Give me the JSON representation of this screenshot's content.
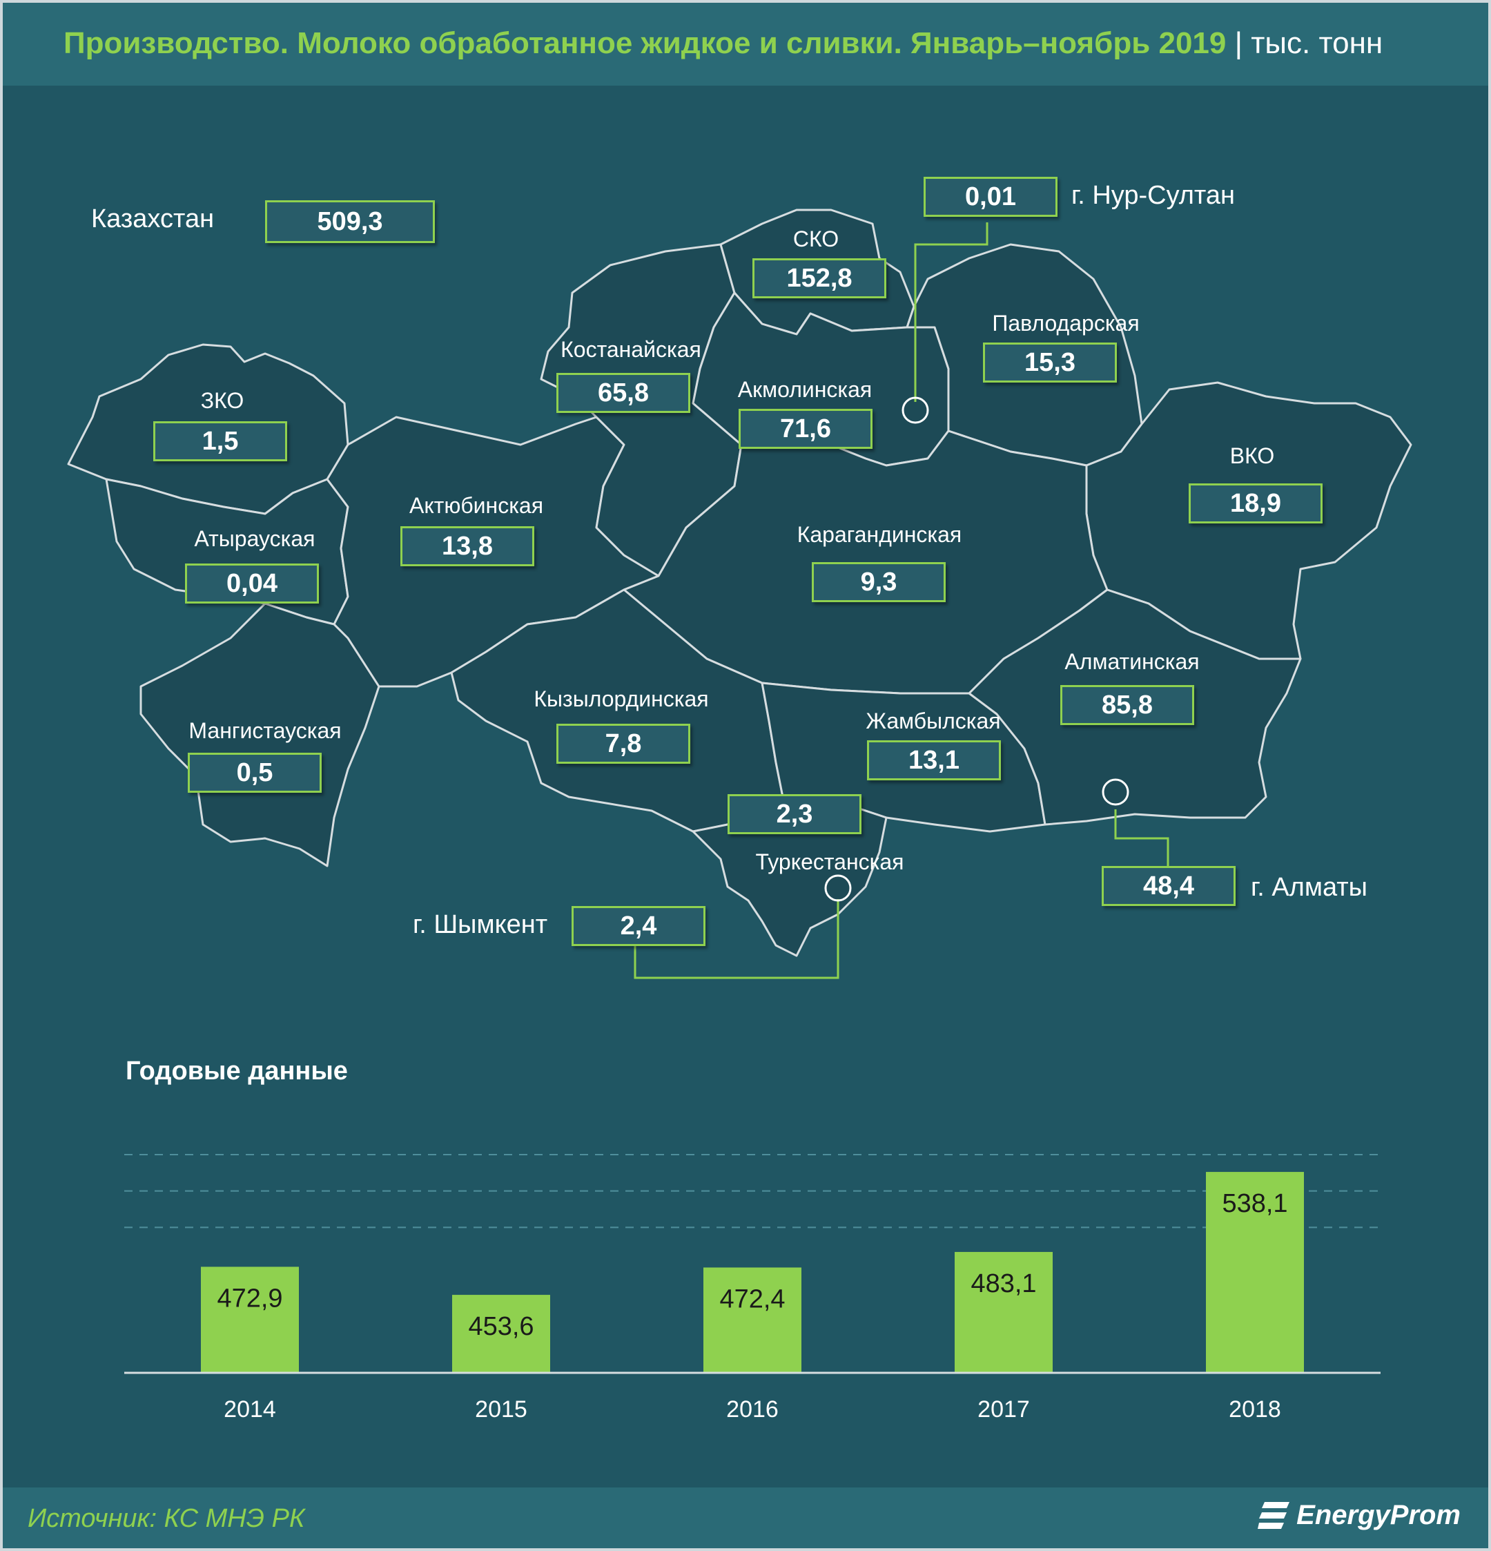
{
  "header": {
    "title": "Производство. Молоко обработанное жидкое и сливки. Январь–ноябрь 2019",
    "unit": "| тыс. тонн"
  },
  "kazakhstan": {
    "label": "Казахстан",
    "value": "509,3"
  },
  "regions": [
    {
      "name": "ЗКО",
      "value": "1,5"
    },
    {
      "name": "Атырауская",
      "value": "0,04"
    },
    {
      "name": "Мангистауская",
      "value": "0,5"
    },
    {
      "name": "Актюбинская",
      "value": "13,8"
    },
    {
      "name": "Костанайская",
      "value": "65,8"
    },
    {
      "name": "СКО",
      "value": "152,8"
    },
    {
      "name": "Акмолинская",
      "value": "71,6"
    },
    {
      "name": "Павлодарская",
      "value": "15,3"
    },
    {
      "name": "ВКО",
      "value": "18,9"
    },
    {
      "name": "Карагандинская",
      "value": "9,3"
    },
    {
      "name": "Кызылординская",
      "value": "7,8"
    },
    {
      "name": "Жамбылская",
      "value": "13,1"
    },
    {
      "name": "Алматинская",
      "value": "85,8"
    },
    {
      "name": "Туркестанская",
      "value": "2,3"
    }
  ],
  "cities": [
    {
      "name": "г. Нур-Султан",
      "value": "0,01"
    },
    {
      "name": "г. Алматы",
      "value": "48,4"
    },
    {
      "name": "г. Шымкент",
      "value": "2,4"
    }
  ],
  "colors": {
    "background": "#205663",
    "region_fill": "#1d4a56",
    "accent": "#8fd14f",
    "text": "#ffffff"
  },
  "annual": {
    "title": "Годовые данные"
  },
  "chart_data": {
    "type": "bar",
    "categories": [
      "2014",
      "2015",
      "2016",
      "2017",
      "2018"
    ],
    "values": [
      472.9,
      453.6,
      472.4,
      483.1,
      538.1
    ],
    "labels": [
      "472,9",
      "453,6",
      "472,4",
      "483,1",
      "538,1"
    ],
    "ylim": [
      400,
      550
    ],
    "grid": true,
    "bar_color": "#8fd14f"
  },
  "footer": {
    "source": "Источник: КС МНЭ РК",
    "brand": "EnergyProm"
  }
}
